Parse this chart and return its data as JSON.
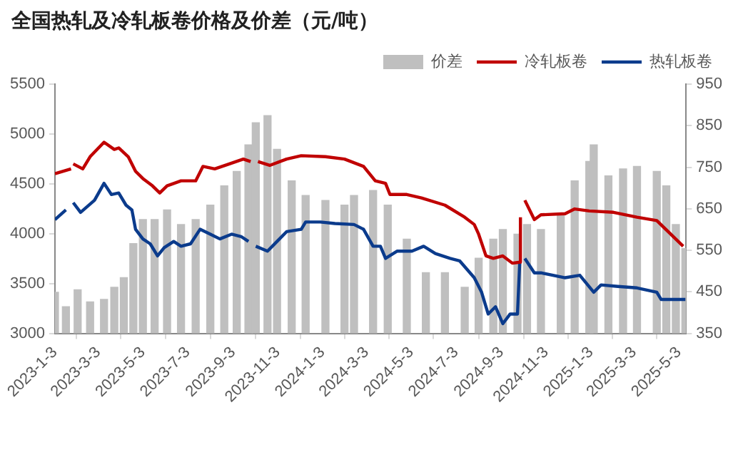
{
  "chart_data": {
    "type": "line",
    "title": "全国热轧及冷轧板卷价格及价差（元/吨）",
    "xlim": [
      "2023-01-03",
      "2025-05-13"
    ],
    "xticks": [
      {
        "value": "2023-01-03",
        "label": "2023-1-3"
      },
      {
        "value": "2023-03-03",
        "label": "2023-3-3"
      },
      {
        "value": "2023-05-03",
        "label": "2023-5-3"
      },
      {
        "value": "2023-07-03",
        "label": "2023-7-3"
      },
      {
        "value": "2023-09-03",
        "label": "2023-9-3"
      },
      {
        "value": "2023-11-03",
        "label": "2023-11-3"
      },
      {
        "value": "2024-01-03",
        "label": "2024-1-3"
      },
      {
        "value": "2024-03-03",
        "label": "2024-3-3"
      },
      {
        "value": "2024-05-03",
        "label": "2024-5-3"
      },
      {
        "value": "2024-07-03",
        "label": "2024-7-3"
      },
      {
        "value": "2024-09-03",
        "label": "2024-9-3"
      },
      {
        "value": "2024-11-03",
        "label": "2024-11-3"
      },
      {
        "value": "2025-01-03",
        "label": "2025-1-3"
      },
      {
        "value": "2025-03-03",
        "label": "2025-3-3"
      },
      {
        "value": "2025-05-03",
        "label": "2025-5-3"
      }
    ],
    "ylim": [
      3000,
      5500
    ],
    "yticks": [
      3000,
      3500,
      4000,
      4500,
      5000,
      5500
    ],
    "y2lim": [
      350,
      950
    ],
    "y2ticks": [
      350,
      450,
      550,
      650,
      750,
      850,
      950
    ],
    "grid": false,
    "legend": "top right",
    "marker": "none",
    "line_style": "solid",
    "series": [
      {
        "name": "价差",
        "type": "bar",
        "axis": "y2",
        "color": "#bfbfbf",
        "x": [
          "2023-01-03",
          "2023-01-18",
          "2023-02-03",
          "2023-02-20",
          "2023-03-11",
          "2023-03-25",
          "2023-04-07",
          "2023-04-20",
          "2023-05-03",
          "2023-05-19",
          "2023-06-05",
          "2023-06-24",
          "2023-07-14",
          "2023-08-03",
          "2023-08-22",
          "2023-09-08",
          "2023-09-24",
          "2023-10-04",
          "2023-10-20",
          "2023-11-02",
          "2023-11-22",
          "2023-12-11",
          "2024-01-07",
          "2024-02-02",
          "2024-02-15",
          "2024-03-12",
          "2024-04-01",
          "2024-04-27",
          "2024-05-23",
          "2024-06-18",
          "2024-07-15",
          "2024-08-03",
          "2024-08-23",
          "2024-09-05",
          "2024-09-25",
          "2024-10-08",
          "2024-10-27",
          "2024-11-23",
          "2024-12-12",
          "2025-01-01",
          "2025-01-07",
          "2025-01-27",
          "2025-02-16",
          "2025-03-07",
          "2025-04-03",
          "2025-04-16",
          "2025-04-29",
          "2025-05-12"
        ],
        "values": [
          449,
          414,
          455,
          426,
          432,
          461,
          484,
          566,
          624,
          624,
          647,
          612,
          624,
          659,
          705,
          740,
          804,
          857,
          874,
          793,
          717,
          682,
          670,
          659,
          682,
          694,
          659,
          577,
          496,
          496,
          461,
          531,
          577,
          600,
          589,
          612,
          600,
          635,
          717,
          764,
          804,
          729,
          746,
          752,
          740,
          705,
          612,
          554
        ]
      },
      {
        "name": "冷轧板卷",
        "type": "line",
        "color": "#c00000",
        "x": [
          "2023-01-03",
          "2023-01-25",
          "2023-01-26",
          "2023-01-28",
          "2023-02-10",
          "2023-02-20",
          "2023-03-11",
          "2023-03-25",
          "2023-03-31",
          "2023-04-13",
          "2023-04-23",
          "2023-05-03",
          "2023-05-16",
          "2023-05-26",
          "2023-06-05",
          "2023-06-24",
          "2023-07-14",
          "2023-07-24",
          "2023-08-09",
          "2023-08-29",
          "2023-09-17",
          "2023-09-27",
          "2023-09-30",
          "2023-10-07",
          "2023-10-23",
          "2023-11-15",
          "2023-12-05",
          "2024-01-07",
          "2024-02-02",
          "2024-02-28",
          "2024-03-15",
          "2024-03-29",
          "2024-04-04",
          "2024-04-27",
          "2024-05-17",
          "2024-06-18",
          "2024-07-15",
          "2024-07-28",
          "2024-08-03",
          "2024-08-13",
          "2024-08-23",
          "2024-09-05",
          "2024-09-18",
          "2024-09-28",
          "2024-09-29",
          "2024-10-02",
          "2024-10-05",
          "2024-10-18",
          "2024-10-27",
          "2024-11-29",
          "2024-12-12",
          "2025-01-01",
          "2025-02-03",
          "2025-03-07",
          "2025-04-03",
          "2025-04-22",
          "2025-05-09"
        ],
        "values": [
          4602,
          4650,
          null,
          4700,
          4650,
          4772,
          4917,
          4845,
          4860,
          4772,
          4626,
          4553,
          4480,
          4408,
          4480,
          4530,
          4530,
          4675,
          4650,
          4700,
          4748,
          4723,
          null,
          4723,
          4685,
          4748,
          4782,
          4772,
          4748,
          4675,
          4530,
          4505,
          4393,
          4393,
          4359,
          4286,
          4165,
          4092,
          3995,
          3777,
          3752,
          3777,
          3704,
          3714,
          4165,
          null,
          4335,
          4141,
          4189,
          4200,
          4248,
          4228,
          4214,
          4165,
          4131,
          3995,
          3874
        ]
      },
      {
        "name": "热轧板卷",
        "type": "line",
        "color": "#0b3b8c",
        "x": [
          "2023-01-03",
          "2023-01-18",
          "2023-01-23",
          "2023-01-28",
          "2023-02-07",
          "2023-02-26",
          "2023-03-11",
          "2023-03-21",
          "2023-03-31",
          "2023-04-10",
          "2023-04-18",
          "2023-04-23",
          "2023-05-03",
          "2023-05-13",
          "2023-05-23",
          "2023-06-01",
          "2023-06-14",
          "2023-06-24",
          "2023-07-07",
          "2023-07-20",
          "2023-08-03",
          "2023-08-16",
          "2023-09-01",
          "2023-09-14",
          "2023-09-24",
          "2023-09-30",
          "2023-10-04",
          "2023-10-20",
          "2023-11-02",
          "2023-11-15",
          "2023-12-05",
          "2023-12-11",
          "2023-12-31",
          "2024-01-20",
          "2024-02-15",
          "2024-02-28",
          "2024-03-12",
          "2024-03-22",
          "2024-03-29",
          "2024-04-14",
          "2024-05-04",
          "2024-05-20",
          "2024-06-05",
          "2024-06-25",
          "2024-07-08",
          "2024-07-28",
          "2024-08-07",
          "2024-08-16",
          "2024-08-26",
          "2024-09-05",
          "2024-09-15",
          "2024-09-25",
          "2024-09-28",
          "2024-10-02",
          "2024-10-05",
          "2024-10-18",
          "2024-10-27",
          "2024-11-29",
          "2024-12-19",
          "2025-01-07",
          "2025-01-17",
          "2025-02-09",
          "2025-03-07",
          "2025-04-03",
          "2025-04-09",
          "2025-05-05",
          "2025-05-12"
        ],
        "values": [
          4141,
          4238,
          null,
          4311,
          4214,
          4335,
          4505,
          4393,
          4408,
          4286,
          4238,
          4044,
          3947,
          3898,
          3777,
          3859,
          3922,
          3874,
          3898,
          4044,
          3995,
          3947,
          3995,
          3971,
          3922,
          null,
          3874,
          3825,
          3922,
          4020,
          4044,
          4117,
          4117,
          4102,
          4092,
          4044,
          3874,
          3874,
          3752,
          3825,
          3825,
          3874,
          3801,
          3752,
          3728,
          3558,
          3413,
          3194,
          3267,
          3097,
          3194,
          3194,
          3704,
          null,
          3752,
          3607,
          3607,
          3558,
          3583,
          3413,
          3486,
          3471,
          3456,
          3413,
          3340,
          3340,
          3340
        ]
      }
    ]
  }
}
